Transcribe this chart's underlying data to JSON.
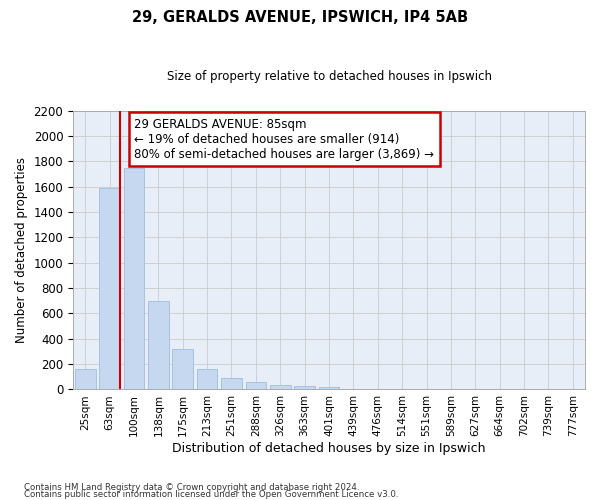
{
  "title1": "29, GERALDS AVENUE, IPSWICH, IP4 5AB",
  "title2": "Size of property relative to detached houses in Ipswich",
  "xlabel": "Distribution of detached houses by size in Ipswich",
  "ylabel": "Number of detached properties",
  "categories": [
    "25sqm",
    "63sqm",
    "100sqm",
    "138sqm",
    "175sqm",
    "213sqm",
    "251sqm",
    "288sqm",
    "326sqm",
    "363sqm",
    "401sqm",
    "439sqm",
    "476sqm",
    "514sqm",
    "551sqm",
    "589sqm",
    "627sqm",
    "664sqm",
    "702sqm",
    "739sqm",
    "777sqm"
  ],
  "values": [
    160,
    1590,
    1750,
    700,
    320,
    160,
    90,
    55,
    35,
    25,
    20,
    0,
    0,
    0,
    0,
    0,
    0,
    0,
    0,
    0,
    0
  ],
  "bar_color": "#c5d8f0",
  "bar_edge_color": "#a0bedd",
  "grid_color": "#cccccc",
  "bg_color": "#e8eef8",
  "annotation_text": "29 GERALDS AVENUE: 85sqm\n← 19% of detached houses are smaller (914)\n80% of semi-detached houses are larger (3,869) →",
  "vline_color": "#cc0000",
  "vline_x_idx": 1,
  "ylim_max": 2200,
  "yticks": [
    0,
    200,
    400,
    600,
    800,
    1000,
    1200,
    1400,
    1600,
    1800,
    2000,
    2200
  ],
  "footer1": "Contains HM Land Registry data © Crown copyright and database right 2024.",
  "footer2": "Contains public sector information licensed under the Open Government Licence v3.0."
}
